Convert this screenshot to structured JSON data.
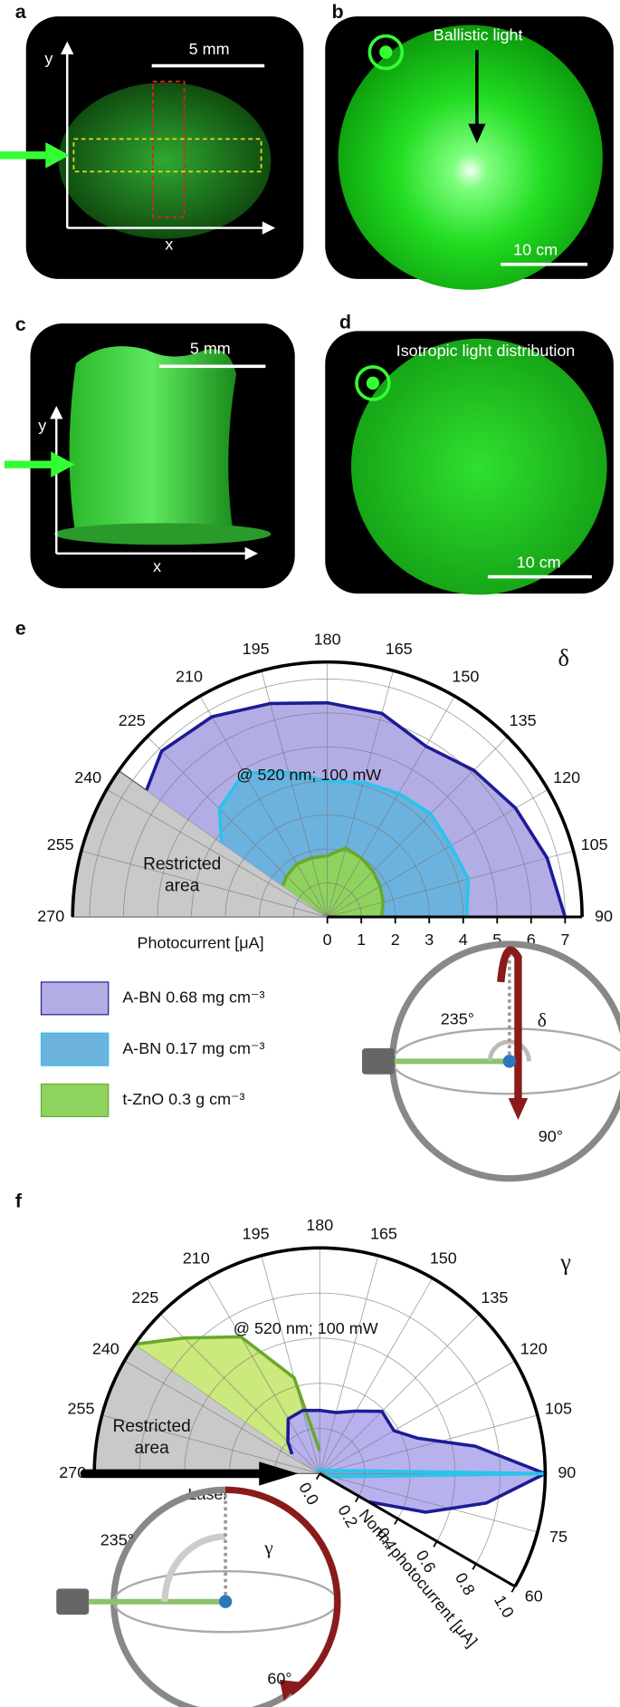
{
  "panels": [
    {
      "label": "a",
      "scale_bar": "5 mm",
      "y_axis": "y",
      "x_axis": "x"
    },
    {
      "label": "b",
      "annotation": "Ballistic light",
      "scale_bar": "10 cm"
    },
    {
      "label": "c",
      "scale_bar": "5 mm",
      "y_axis": "y",
      "x_axis": "x"
    },
    {
      "label": "d",
      "annotation": "Isotropic light distribution",
      "scale_bar": "10 cm"
    }
  ],
  "chart_data": [
    {
      "type": "polar",
      "panel_label": "e",
      "theta_symbol": "δ",
      "annotation": "@ 520 nm; 100 mW",
      "restricted_label": [
        "Restricted",
        "area"
      ],
      "restricted_sector": [
        235,
        270
      ],
      "thetalim": [
        90,
        270
      ],
      "thetaticks": [
        90,
        105,
        120,
        135,
        150,
        165,
        180,
        195,
        210,
        225,
        240,
        255,
        270
      ],
      "rlim": [
        0,
        7.5
      ],
      "rticks": [
        0,
        1,
        2,
        3,
        4,
        5,
        6,
        7
      ],
      "raxis_label": "Photocurrent [μA]",
      "series": [
        {
          "name": "A-BN 0.68 mg cm⁻³",
          "color": "#b3ade6",
          "line_color": "#1c1c96",
          "theta": [
            90,
            105,
            120,
            135,
            150,
            165,
            180,
            195,
            210,
            225,
            235
          ],
          "values": [
            7.0,
            6.7,
            6.4,
            6.1,
            5.8,
            6.2,
            6.3,
            6.5,
            6.8,
            6.9,
            6.5
          ]
        },
        {
          "name": "A-BN 0.17 mg cm⁻³",
          "color": "#6cb2df",
          "line_color": "#2cc3ea",
          "theta": [
            90,
            105,
            120,
            135,
            150,
            165,
            180,
            195,
            210,
            225,
            235
          ],
          "values": [
            4.1,
            4.3,
            4.2,
            4.3,
            4.2,
            4.1,
            4.0,
            4.4,
            4.9,
            4.5,
            3.8
          ]
        },
        {
          "name": "t-ZnO 0.3 g cm⁻³",
          "color": "#8fd35f",
          "line_color": "#6aa82c",
          "theta": [
            90,
            105,
            120,
            135,
            150,
            165,
            180,
            195,
            210,
            225,
            235
          ],
          "values": [
            1.6,
            1.7,
            1.8,
            1.9,
            2.0,
            2.1,
            1.8,
            1.8,
            1.8,
            1.7,
            1.6
          ]
        }
      ],
      "inset": {
        "angle_label": "235°",
        "symbol": "δ",
        "end_label": "90°"
      }
    },
    {
      "type": "polar",
      "panel_label": "f",
      "theta_symbol": "γ",
      "annotation": "@ 520 nm; 100 mW",
      "restricted_label": [
        "Restricted",
        "area"
      ],
      "restricted_sector": [
        235,
        270
      ],
      "laser_label": "Laser",
      "thetalim": [
        60,
        270
      ],
      "thetaticks": [
        60,
        75,
        90,
        105,
        120,
        135,
        150,
        165,
        180,
        195,
        210,
        225,
        240,
        255,
        270
      ],
      "rlim": [
        0,
        1
      ],
      "rticks": [
        {
          "value": 0,
          "label": "0.0"
        },
        0.2,
        0.4,
        0.6,
        0.8,
        {
          "value": 1,
          "label": "1.0"
        }
      ],
      "raxis_label": "Norm. photocurrent [μA]",
      "series": [
        {
          "color": "#cbe97c",
          "line_color": "#6aa82c",
          "theta": [
            180,
            195,
            210,
            225,
            235
          ],
          "values": [
            0.1,
            0.44,
            0.7,
            0.85,
            1.0
          ]
        },
        {
          "color": "#b7b2ee",
          "line_color": "#1c1c96",
          "theta": [
            60,
            70,
            80,
            90,
            100,
            110,
            120,
            135,
            150,
            165,
            180,
            195,
            210,
            225,
            235
          ],
          "values": [
            0.25,
            0.5,
            0.75,
            1.0,
            0.7,
            0.46,
            0.38,
            0.39,
            0.32,
            0.28,
            0.28,
            0.29,
            0.28,
            0.2,
            0.15
          ]
        },
        {
          "color": "#6cb2df",
          "line_color": "#2cc3ea",
          "theta": [
            60,
            75,
            85,
            90,
            95,
            105,
            120,
            180,
            235
          ],
          "values": [
            0.02,
            0.05,
            0.15,
            1.0,
            0.15,
            0.05,
            0.03,
            0.02,
            0.02
          ]
        }
      ],
      "inset": {
        "angle_label": "235°",
        "symbol": "γ",
        "end_label": "60°"
      }
    }
  ]
}
